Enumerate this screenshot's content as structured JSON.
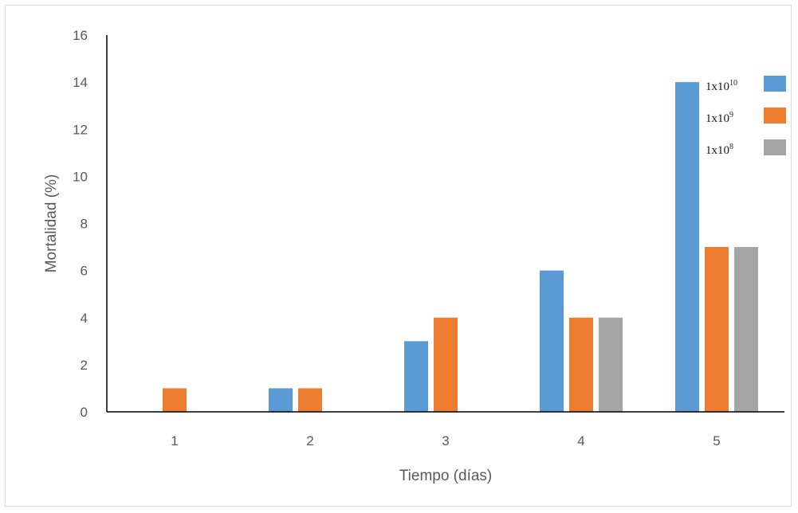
{
  "chart_data": {
    "type": "bar",
    "title": "",
    "xlabel": "Tiempo (días)",
    "ylabel": "Mortalidad (%)",
    "categories": [
      "1",
      "2",
      "3",
      "4",
      "5"
    ],
    "ylim": [
      0,
      16
    ],
    "yticks": [
      0,
      2,
      4,
      6,
      8,
      10,
      12,
      14,
      16
    ],
    "grid": false,
    "legend_position": "right",
    "series": [
      {
        "name": "1x10",
        "exponent": "10",
        "color": "#5b9bd5",
        "values": [
          0,
          1,
          3,
          6,
          14
        ]
      },
      {
        "name": "1x10",
        "exponent": "9",
        "color": "#ed7d31",
        "values": [
          1,
          1,
          4,
          4,
          7
        ]
      },
      {
        "name": "1x10",
        "exponent": "8",
        "color": "#a5a5a5",
        "values": [
          0,
          0,
          0,
          4,
          7
        ]
      }
    ]
  }
}
